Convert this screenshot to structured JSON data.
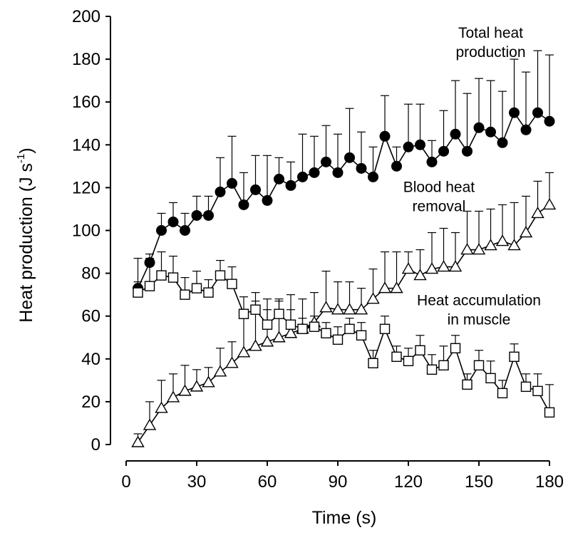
{
  "chart_data": {
    "type": "line",
    "xlabel": "Time (s)",
    "ylabel": "Heat production (J s",
    "ylabel_sup": "-1",
    "ylabel_end": ")",
    "xlim": [
      0,
      180
    ],
    "ylim": [
      0,
      200
    ],
    "xticks": [
      "0",
      "30",
      "60",
      "90",
      "120",
      "150",
      "180"
    ],
    "yticks": [
      "0",
      "20",
      "40",
      "60",
      "80",
      "100",
      "120",
      "140",
      "160",
      "180",
      "200"
    ],
    "grid": false,
    "x": [
      5,
      10,
      15,
      20,
      25,
      30,
      35,
      40,
      45,
      50,
      55,
      60,
      65,
      70,
      75,
      80,
      85,
      90,
      95,
      100,
      105,
      110,
      115,
      120,
      125,
      130,
      135,
      140,
      145,
      150,
      155,
      160,
      165,
      170,
      175,
      180
    ],
    "series": [
      {
        "marker": "filled-circle",
        "color": "#000000",
        "values": [
          73,
          85,
          100,
          104,
          100,
          107,
          107,
          118,
          122,
          112,
          119,
          114,
          124,
          121,
          125,
          127,
          132,
          127,
          134,
          129,
          125,
          144,
          130,
          139,
          140,
          132,
          137,
          145,
          137,
          148,
          146,
          141,
          155,
          147,
          155,
          151
        ],
        "error": [
          3,
          4,
          8,
          9,
          8,
          9,
          9,
          16,
          22,
          15,
          16,
          21,
          10,
          11,
          20,
          17,
          17,
          18,
          23,
          17,
          14,
          19,
          9,
          20,
          19,
          10,
          19,
          25,
          27,
          23,
          24,
          24,
          25,
          27,
          29,
          31
        ]
      },
      {
        "marker": "open-triangle",
        "color": "#000000",
        "values": [
          1,
          9,
          17,
          22,
          25,
          27,
          29,
          34,
          38,
          43,
          46,
          48,
          50,
          52,
          54,
          57,
          64,
          63,
          63,
          63,
          68,
          73,
          73,
          82,
          79,
          82,
          83,
          83,
          91,
          91,
          93,
          95,
          93,
          99,
          108,
          112
        ],
        "error": [
          4,
          11,
          13,
          11,
          12,
          8,
          7,
          11,
          10,
          18,
          21,
          20,
          17,
          18,
          14,
          14,
          17,
          13,
          13,
          10,
          14,
          17,
          17,
          8,
          12,
          17,
          18,
          16,
          18,
          18,
          17,
          17,
          20,
          17,
          15,
          15
        ]
      },
      {
        "marker": "open-square",
        "color": "#000000",
        "values": [
          71,
          74,
          79,
          78,
          70,
          73,
          71,
          79,
          75,
          61,
          63,
          56,
          61,
          56,
          54,
          55,
          52,
          49,
          54,
          51,
          38,
          54,
          41,
          39,
          44,
          35,
          37,
          45,
          28,
          37,
          31,
          24,
          41,
          27,
          25,
          15
        ],
        "error": [
          16,
          13,
          11,
          10,
          8,
          8,
          6,
          7,
          8,
          8,
          8,
          7,
          7,
          7,
          5,
          5,
          5,
          6,
          5,
          6,
          6,
          6,
          5,
          6,
          7,
          7,
          9,
          6,
          5,
          7,
          8,
          6,
          6,
          6,
          8,
          13
        ]
      }
    ],
    "annotations": [
      {
        "lines": [
          "Total heat",
          "production"
        ],
        "x": 155,
        "y": 190
      },
      {
        "lines": [
          "Blood heat",
          "removal"
        ],
        "x": 133,
        "y": 118
      },
      {
        "lines": [
          "Heat accumulation",
          "in muscle"
        ],
        "x": 150,
        "y": 65
      }
    ]
  }
}
